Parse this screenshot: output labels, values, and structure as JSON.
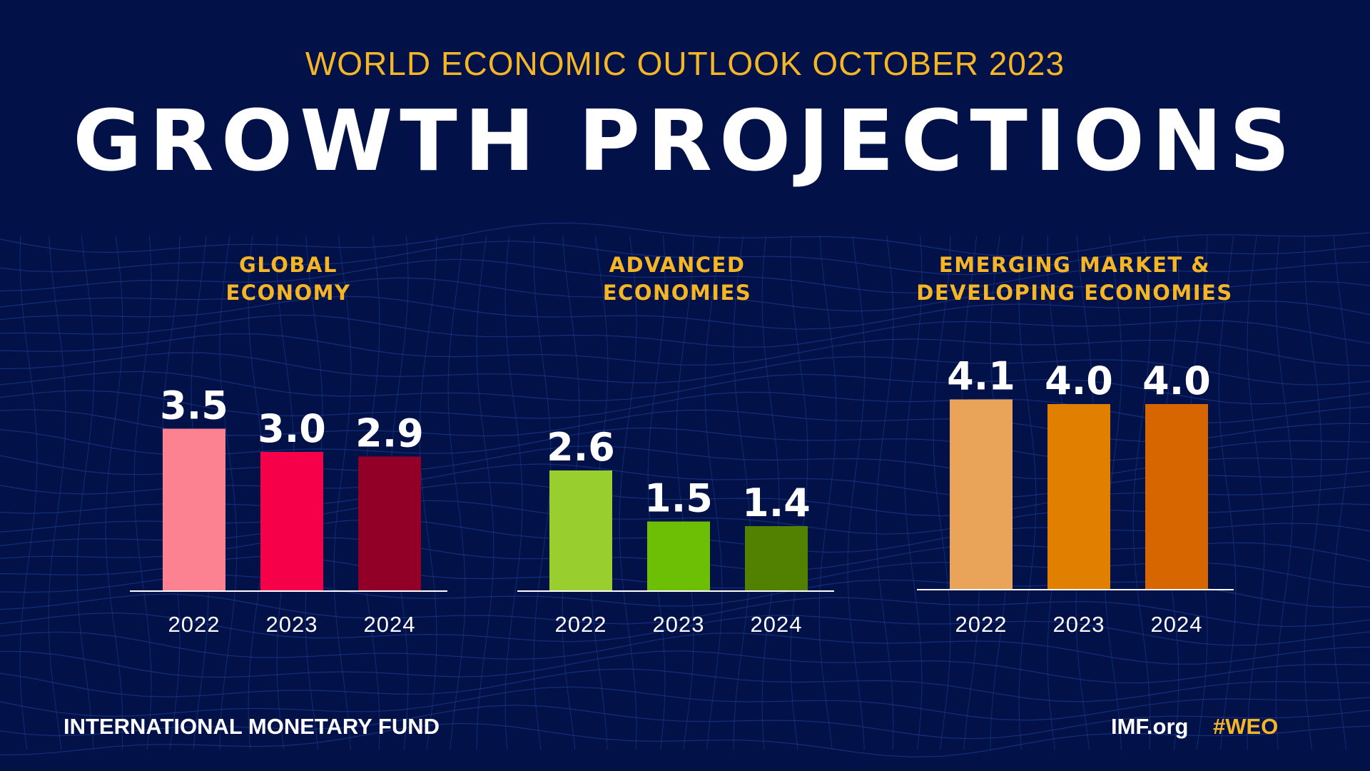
{
  "header": {
    "subtitle": "WORLD ECONOMIC OUTLOOK OCTOBER 2023",
    "title": "GROWTH PROJECTIONS"
  },
  "chart_data": [
    {
      "type": "bar",
      "title": "GLOBAL ECONOMY",
      "categories": [
        "2022",
        "2023",
        "2024"
      ],
      "values": [
        3.5,
        3.0,
        2.9
      ],
      "value_labels": [
        "3.5",
        "3.0",
        "2.9"
      ],
      "colors": [
        "#fc8292",
        "#f7004a",
        "#920028"
      ],
      "grid": false
    },
    {
      "type": "bar",
      "title": "ADVANCED ECONOMIES",
      "categories": [
        "2022",
        "2023",
        "2024"
      ],
      "values": [
        2.6,
        1.5,
        1.4
      ],
      "value_labels": [
        "2.6",
        "1.5",
        "1.4"
      ],
      "colors": [
        "#98cf2e",
        "#6dbf05",
        "#528000"
      ],
      "grid": false
    },
    {
      "type": "bar",
      "title": "EMERGING MARKET & DEVELOPING ECONOMIES",
      "categories": [
        "2022",
        "2023",
        "2024"
      ],
      "values": [
        4.1,
        4.0,
        4.0
      ],
      "value_labels": [
        "4.1",
        "4.0",
        "4.0"
      ],
      "colors": [
        "#e9a45a",
        "#e17f00",
        "#d76600"
      ],
      "grid": false
    }
  ],
  "panel_titles": [
    {
      "line1": "GLOBAL",
      "line2": "ECONOMY"
    },
    {
      "line1": "ADVANCED",
      "line2": "ECONOMIES"
    },
    {
      "line1": "EMERGING MARKET &",
      "line2": "DEVELOPING ECONOMIES"
    }
  ],
  "footer": {
    "org": "INTERNATIONAL MONETARY FUND",
    "site": "IMF.org",
    "hashtag": "#WEO"
  },
  "colors": {
    "background": "#021249",
    "accent": "#f5b524"
  }
}
